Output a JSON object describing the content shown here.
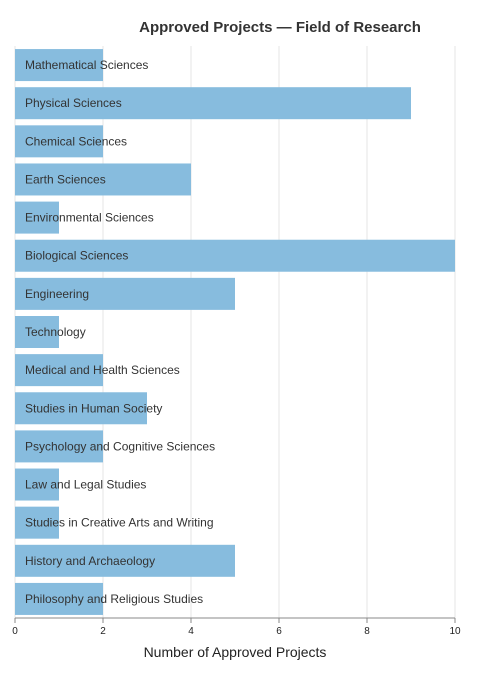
{
  "chart_data": {
    "type": "bar",
    "orientation": "horizontal",
    "title": "Approved Projects — Field of Research",
    "xlabel": "Number of Approved Projects",
    "ylabel": "",
    "xlim": [
      0,
      10
    ],
    "xticks": [
      0,
      2,
      4,
      6,
      8,
      10
    ],
    "grid": true,
    "legend": "none",
    "bar_color": "#87BCDE",
    "categories": [
      "Mathematical Sciences",
      "Physical Sciences",
      "Chemical Sciences",
      "Earth Sciences",
      "Environmental Sciences",
      "Biological Sciences",
      "Engineering",
      "Technology",
      "Medical and Health Sciences",
      "Studies in Human Society",
      "Psychology and Cognitive Sciences",
      "Law and Legal Studies",
      "Studies in Creative Arts and Writing",
      "History and Archaeology",
      "Philosophy and Religious Studies"
    ],
    "values": [
      2,
      9,
      2,
      4,
      1,
      10,
      5,
      1,
      2,
      3,
      2,
      1,
      1,
      5,
      2
    ]
  }
}
